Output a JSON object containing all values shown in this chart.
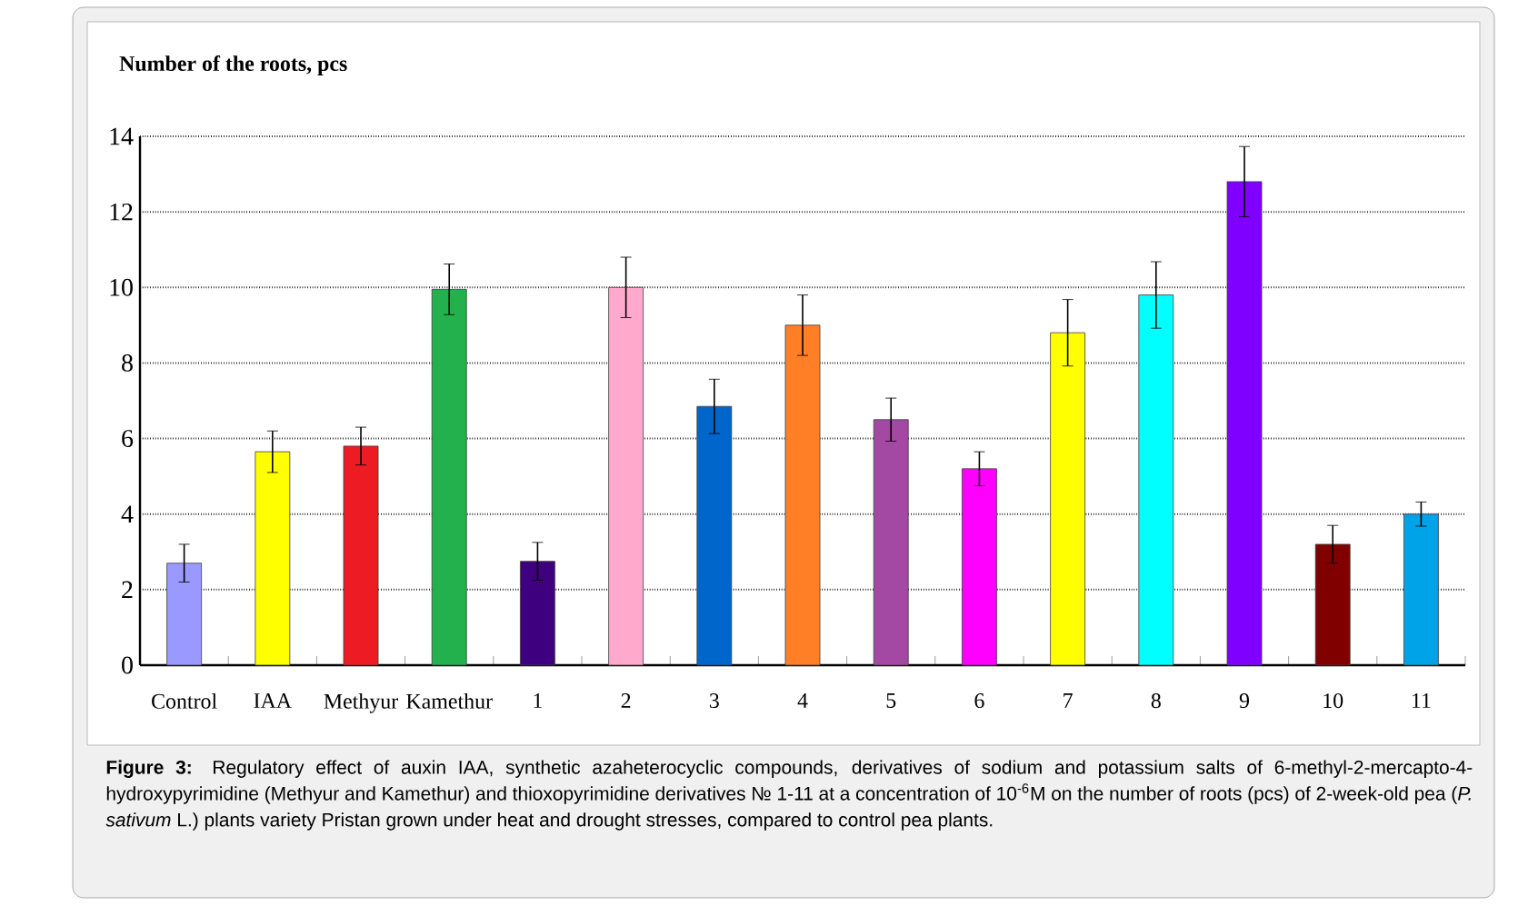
{
  "chart_data": {
    "type": "bar",
    "ylabel": "Number of the roots, pcs",
    "categories": [
      "Control",
      "IAA",
      "Methyur",
      "Kamethur",
      "1",
      "2",
      "3",
      "4",
      "5",
      "6",
      "7",
      "8",
      "9",
      "10",
      "11"
    ],
    "values": [
      2.7,
      5.65,
      5.8,
      9.95,
      2.75,
      10,
      6.85,
      9,
      6.5,
      5.2,
      8.8,
      9.8,
      12.8,
      3.2,
      4
    ],
    "errors": [
      0.5,
      0.55,
      0.5,
      0.67,
      0.5,
      0.8,
      0.72,
      0.8,
      0.57,
      0.45,
      0.88,
      0.88,
      0.93,
      0.5,
      0.32
    ],
    "colors": [
      "#9999ff",
      "#ffff00",
      "#ed1c24",
      "#22b14c",
      "#3f007f",
      "#ffaacc",
      "#0066cc",
      "#ff7f27",
      "#a349a4",
      "#ff00ff",
      "#ffff00",
      "#00ffff",
      "#7f00ff",
      "#800000",
      "#00a2e8"
    ],
    "ylim": [
      0,
      14
    ],
    "yticks": [
      0,
      2,
      4,
      6,
      8,
      10,
      12,
      14
    ],
    "grid": "y",
    "annotations": [
      "**Figure 3:** Regulatory effect of auxin IAA, synthetic azaheterocyclic compounds, derivatives of sodium and potassium salts of 6-methyl-2-mercapto-4-hydroxypyrimidine (Methyur and Kamethur) and thioxopyrimidine derivatives № 1-11 at a concentration of 10$^{-6}$M on the number of roots (pcs) of 2-week-old pea (*P. sativum* L.) plants variety Pristan grown under heat and drought stresses, compared to control pea plants."
    ]
  }
}
